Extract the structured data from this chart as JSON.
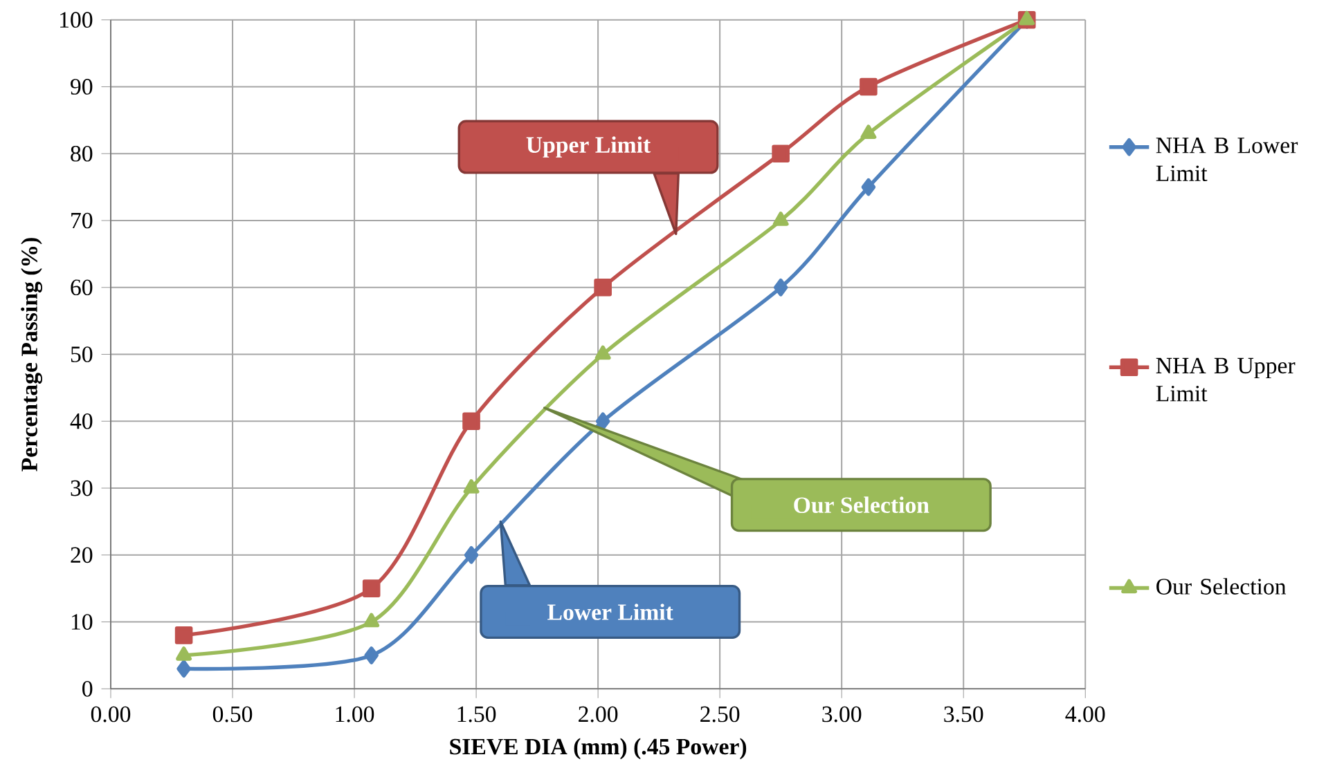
{
  "chart_data": {
    "type": "line",
    "xlabel": "SIEVE DIA (mm) (.45 Power)",
    "ylabel": "Percentage Passing (%)",
    "x": [
      0.3,
      1.07,
      1.48,
      2.02,
      2.75,
      3.11,
      3.76
    ],
    "series": [
      {
        "name": "NHA B Lower Limit",
        "color": "#4f81bd",
        "marker": "diamond",
        "values": [
          3,
          5,
          20,
          40,
          60,
          75,
          100
        ]
      },
      {
        "name": "NHA B Upper Limit",
        "color": "#c0504d",
        "marker": "square",
        "values": [
          8,
          15,
          40,
          60,
          80,
          90,
          100
        ]
      },
      {
        "name": "Our Selection",
        "color": "#9bbb59",
        "marker": "triangle",
        "values": [
          5,
          10,
          30,
          50,
          70,
          83,
          100
        ]
      }
    ],
    "annotations": [
      {
        "text": "Upper Limit",
        "x": 2.32,
        "y": 68
      },
      {
        "text": "Our Selection",
        "x": 1.78,
        "y": 42
      },
      {
        "text": "Lower Limit",
        "x": 1.6,
        "y": 25
      }
    ],
    "xlim": [
      0,
      4
    ],
    "ylim": [
      0,
      100
    ],
    "xticks": [
      {
        "value": 0,
        "label": "0.00"
      },
      {
        "value": 0.5,
        "label": "0.50"
      },
      {
        "value": 1,
        "label": "1.00"
      },
      {
        "value": 1.5,
        "label": "1.50"
      },
      {
        "value": 2,
        "label": "2.00"
      },
      {
        "value": 2.5,
        "label": "2.50"
      },
      {
        "value": 3,
        "label": "3.00"
      },
      {
        "value": 3.5,
        "label": "3.50"
      },
      {
        "value": 4,
        "label": "4.00"
      }
    ],
    "yticks": [
      0,
      10,
      20,
      30,
      40,
      50,
      60,
      70,
      80,
      90,
      100
    ],
    "grid": true,
    "legend": "right",
    "line_style": "solid"
  }
}
